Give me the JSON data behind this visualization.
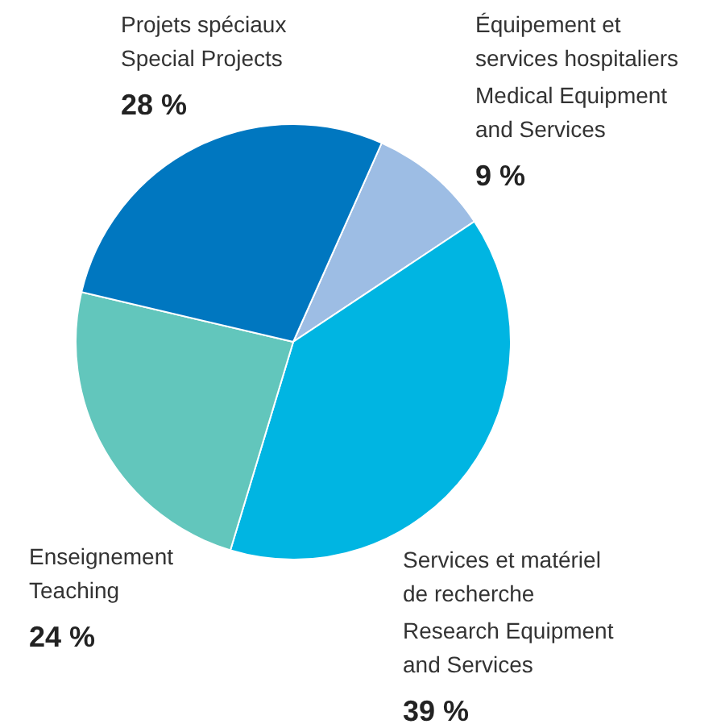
{
  "chart_data": {
    "type": "pie",
    "categories": [
      "Équipement et\nservices hospitaliers\nMedical Equipment\nand Services",
      "Services et matériel\nde recherche\nResearch Equipment\nand Services",
      "Enseignement\nTeaching",
      "Projets spéciaux\nSpecial Projects"
    ],
    "values": [
      9,
      39,
      24,
      28
    ],
    "colors": [
      "#9dbde4",
      "#00b5e2",
      "#62c6bc",
      "#0077c0"
    ],
    "value_labels": [
      "9 %",
      "39 %",
      "24 %",
      "28 %"
    ]
  }
}
